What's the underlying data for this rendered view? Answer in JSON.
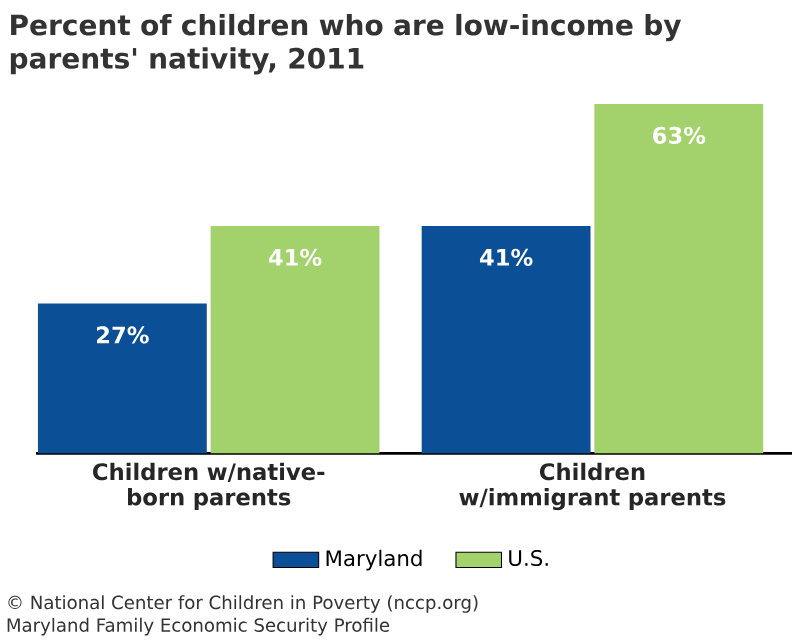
{
  "chart_data": {
    "type": "bar",
    "title": "Percent of children who are low-income by parents' nativity, 2011",
    "categories": [
      "Children w/native-born parents",
      "Children w/immigrant parents"
    ],
    "series": [
      {
        "name": "Maryland",
        "color": "#0b4f96",
        "values": [
          27,
          41
        ],
        "value_labels": [
          "27%",
          "41%"
        ]
      },
      {
        "name": "U.S.",
        "color": "#a3d16c",
        "values": [
          41,
          63
        ],
        "value_labels": [
          "41%",
          "63%"
        ]
      }
    ],
    "legend": "bottom",
    "annotations": [
      "© National Center for Children in Poverty (nccp.org)",
      "Maryland Family Economic Security Profile"
    ]
  }
}
